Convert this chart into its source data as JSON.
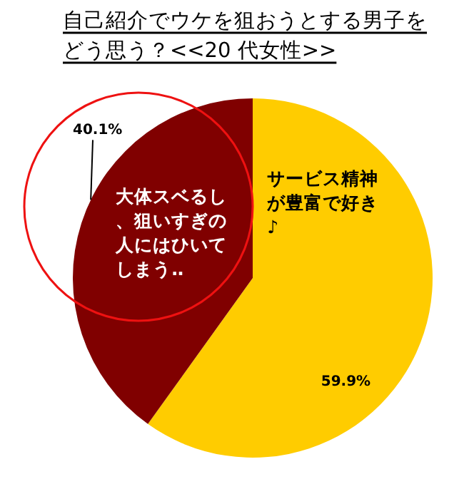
{
  "chart_data": {
    "type": "pie",
    "title": "自己紹介でウケを狙おうとする男子をどう思う？<<20 代女性>>",
    "categories": [
      "サービス精神が豊富で好き♪",
      "大体スベるし、狙いすぎの人にはひいてしまう‥"
    ],
    "values": [
      59.9,
      40.1
    ],
    "colors": [
      "#ffcc00",
      "#800000"
    ],
    "value_labels": [
      "59.9%",
      "40.1%"
    ]
  }
}
